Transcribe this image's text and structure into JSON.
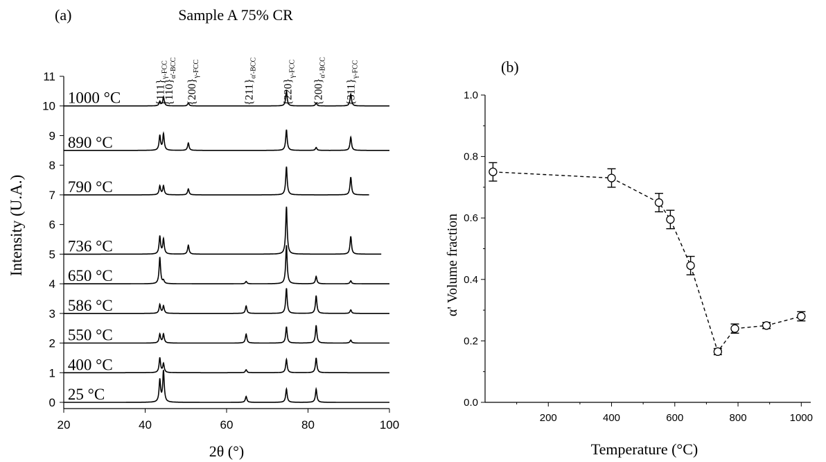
{
  "chart_data": [
    {
      "type": "line",
      "panel_label": "(a)",
      "title": "Sample A 75% CR",
      "xlabel": "2θ (°)",
      "ylabel": "Intensity (U.A.)",
      "xlim": [
        20,
        100
      ],
      "ylim": [
        0,
        11
      ],
      "xticks": [
        20,
        40,
        60,
        80,
        100
      ],
      "yticks": [
        0,
        1,
        2,
        3,
        4,
        5,
        6,
        7,
        8,
        9,
        10,
        11
      ],
      "grid": false,
      "series": [
        {
          "name": "25 °C",
          "baseline": 0,
          "x_end": 100,
          "peaks": [
            [
              43.6,
              0.75
            ],
            [
              44.5,
              1.05
            ],
            [
              64.8,
              0.2
            ],
            [
              74.7,
              0.45
            ],
            [
              82.0,
              0.45
            ]
          ]
        },
        {
          "name": "400 °C",
          "baseline": 1,
          "x_end": 100,
          "peaks": [
            [
              43.6,
              0.5
            ],
            [
              44.5,
              0.3
            ],
            [
              64.8,
              0.1
            ],
            [
              74.7,
              0.45
            ],
            [
              82.0,
              0.5
            ]
          ]
        },
        {
          "name": "550 °C",
          "baseline": 2,
          "x_end": 100,
          "peaks": [
            [
              43.6,
              0.3
            ],
            [
              44.5,
              0.3
            ],
            [
              64.8,
              0.3
            ],
            [
              74.7,
              0.55
            ],
            [
              82.0,
              0.6
            ],
            [
              90.5,
              0.1
            ]
          ]
        },
        {
          "name": "586 °C",
          "baseline": 3,
          "x_end": 100,
          "peaks": [
            [
              43.6,
              0.3
            ],
            [
              44.5,
              0.25
            ],
            [
              64.8,
              0.25
            ],
            [
              74.7,
              0.85
            ],
            [
              82.0,
              0.6
            ],
            [
              90.5,
              0.12
            ]
          ]
        },
        {
          "name": "650 °C",
          "baseline": 4,
          "x_end": 100,
          "peaks": [
            [
              43.6,
              0.9
            ],
            [
              44.5,
              0.1
            ],
            [
              64.8,
              0.08
            ],
            [
              74.7,
              1.3
            ],
            [
              82.0,
              0.25
            ],
            [
              90.5,
              0.1
            ]
          ]
        },
        {
          "name": "736 °C",
          "baseline": 5,
          "x_end": 98,
          "peaks": [
            [
              43.6,
              0.6
            ],
            [
              44.5,
              0.5
            ],
            [
              50.6,
              0.3
            ],
            [
              74.7,
              1.6
            ],
            [
              90.5,
              0.6
            ]
          ]
        },
        {
          "name": "790 °C",
          "baseline": 7,
          "x_end": 95,
          "peaks": [
            [
              43.6,
              0.3
            ],
            [
              44.5,
              0.3
            ],
            [
              50.6,
              0.2
            ],
            [
              74.7,
              0.95
            ],
            [
              90.5,
              0.6
            ]
          ]
        },
        {
          "name": "890 °C",
          "baseline": 8.5,
          "x_end": 100,
          "peaks": [
            [
              43.6,
              0.5
            ],
            [
              44.5,
              0.55
            ],
            [
              50.6,
              0.25
            ],
            [
              74.7,
              0.7
            ],
            [
              82.0,
              0.1
            ],
            [
              90.5,
              0.45
            ]
          ]
        },
        {
          "name": "1000 °C",
          "baseline": 10,
          "x_end": 100,
          "peaks": [
            [
              43.6,
              0.15
            ],
            [
              44.5,
              0.3
            ],
            [
              50.6,
              0.1
            ],
            [
              74.7,
              0.5
            ],
            [
              82.0,
              0.1
            ],
            [
              90.5,
              0.4
            ]
          ]
        }
      ],
      "peak_labels": [
        {
          "x": 43.6,
          "base": "{111}",
          "sub": "γ-FCC"
        },
        {
          "x": 45.7,
          "base": "{110}",
          "sub": "α'-BCC"
        },
        {
          "x": 51.3,
          "base": "{200}",
          "sub": "γ-FCC"
        },
        {
          "x": 65.4,
          "base": "{211}",
          "sub": "α'-BCC"
        },
        {
          "x": 74.9,
          "base": "{220}",
          "sub": "γ-FCC"
        },
        {
          "x": 82.4,
          "base": "{200}",
          "sub": "α'-BCC"
        },
        {
          "x": 90.4,
          "base": "{311}",
          "sub": "γ-FCC"
        }
      ]
    },
    {
      "type": "scatter",
      "panel_label": "(b)",
      "title": "",
      "xlabel": "Temperature (°C)",
      "ylabel": "α' Volume fraction",
      "xlim": [
        0,
        1030
      ],
      "ylim": [
        0,
        1.0
      ],
      "xticks": [
        200,
        400,
        600,
        800,
        1000
      ],
      "yticks": [
        0.0,
        0.2,
        0.4,
        0.6,
        0.8,
        1.0
      ],
      "grid": false,
      "line_style": "dashed",
      "marker": "open-circle",
      "points": [
        {
          "x": 25,
          "y": 0.75,
          "err": 0.03
        },
        {
          "x": 400,
          "y": 0.73,
          "err": 0.03
        },
        {
          "x": 550,
          "y": 0.65,
          "err": 0.03
        },
        {
          "x": 586,
          "y": 0.595,
          "err": 0.03
        },
        {
          "x": 650,
          "y": 0.445,
          "err": 0.03
        },
        {
          "x": 736,
          "y": 0.165,
          "err": 0.01
        },
        {
          "x": 790,
          "y": 0.24,
          "err": 0.015
        },
        {
          "x": 890,
          "y": 0.25,
          "err": 0.01
        },
        {
          "x": 1000,
          "y": 0.28,
          "err": 0.015
        }
      ]
    }
  ]
}
